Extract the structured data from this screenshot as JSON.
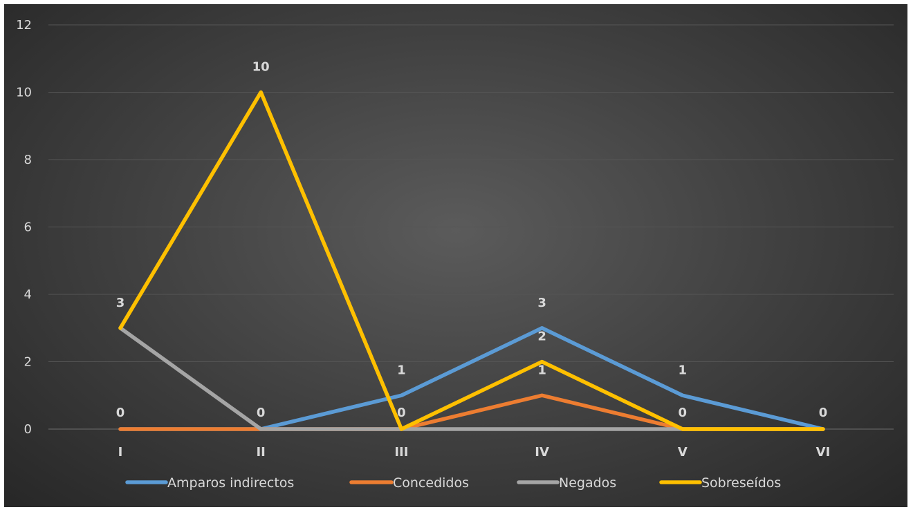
{
  "chart_data": {
    "type": "line",
    "title": "",
    "xlabel": "",
    "ylabel": "",
    "categories": [
      "I",
      "II",
      "III",
      "IV",
      "V",
      "VI"
    ],
    "ylim": [
      0,
      12
    ],
    "yticks": [
      0,
      2,
      4,
      6,
      8,
      10,
      12
    ],
    "grid": true,
    "legend_position": "bottom",
    "series": [
      {
        "name": "Amparos indirectos",
        "color": "#5b9bd5",
        "values": [
          0,
          0,
          1,
          3,
          1,
          0
        ],
        "labels_shown": [
          false,
          false,
          true,
          true,
          true,
          false
        ]
      },
      {
        "name": "Concedidos",
        "color": "#ed7d31",
        "values": [
          0,
          0,
          0,
          1,
          0,
          0
        ],
        "labels_shown": [
          true,
          true,
          true,
          true,
          true,
          true
        ]
      },
      {
        "name": "Negados",
        "color": "#a5a5a5",
        "values": [
          3,
          0,
          0,
          0,
          0,
          0
        ],
        "labels_shown": [
          false,
          false,
          false,
          false,
          false,
          false
        ]
      },
      {
        "name": "Sobreseídos",
        "color": "#ffc000",
        "values": [
          3,
          10,
          0,
          2,
          0,
          0
        ],
        "labels_shown": [
          true,
          true,
          false,
          true,
          false,
          false
        ]
      }
    ]
  }
}
